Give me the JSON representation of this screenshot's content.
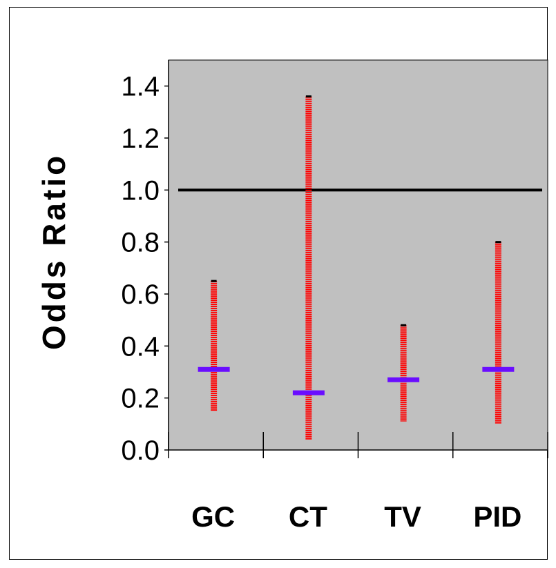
{
  "chart_data": {
    "type": "error-bar",
    "categories": [
      "GC",
      "CT",
      "TV",
      "PID"
    ],
    "series": [
      {
        "point_estimates": [
          0.31,
          0.22,
          0.27,
          0.31
        ],
        "ci_lower": [
          0.15,
          0.04,
          0.11,
          0.1
        ],
        "ci_upper": [
          0.65,
          1.36,
          0.48,
          0.8
        ]
      }
    ],
    "reference_line": 1.0,
    "title": "",
    "xlabel": "",
    "ylabel": "Odds Ratio",
    "ylim": [
      0,
      1.5
    ],
    "yticks": [
      "0.0",
      "0.2",
      "0.4",
      "0.6",
      "0.8",
      "1.0",
      "1.2",
      "1.4"
    ],
    "grid": false,
    "plot_background": "#c0c0c0",
    "colors": {
      "estimate": "#6a0dff",
      "interval": "#ff0000",
      "reference_line": "#000000"
    }
  }
}
